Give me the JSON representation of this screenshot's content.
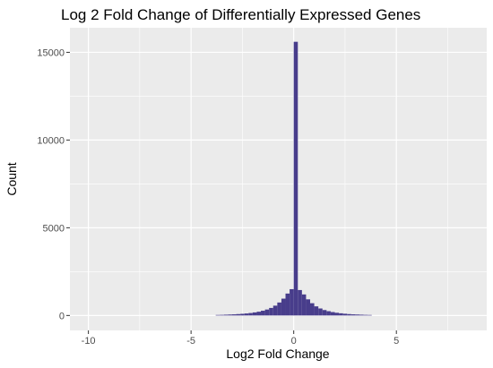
{
  "chart_data": {
    "type": "bar",
    "title": "Log 2 Fold Change of Differentially Expressed Genes",
    "xlabel": "Log2 Fold Change",
    "ylabel": "Count",
    "xlim": [
      -10.9,
      9.4
    ],
    "ylim": [
      -850,
      16400
    ],
    "x_ticks": [
      -10,
      -5,
      0,
      5
    ],
    "y_ticks": [
      0,
      5000,
      10000,
      15000
    ],
    "bin_width": 0.2,
    "bar_color": "#483d8b",
    "panel_background": "#ebebeb",
    "grid": true,
    "bins": [
      {
        "x": -3.7,
        "count": 30
      },
      {
        "x": -3.5,
        "count": 35
      },
      {
        "x": -3.3,
        "count": 45
      },
      {
        "x": -3.1,
        "count": 55
      },
      {
        "x": -2.9,
        "count": 65
      },
      {
        "x": -2.7,
        "count": 80
      },
      {
        "x": -2.5,
        "count": 95
      },
      {
        "x": -2.3,
        "count": 115
      },
      {
        "x": -2.1,
        "count": 140
      },
      {
        "x": -1.9,
        "count": 175
      },
      {
        "x": -1.7,
        "count": 215
      },
      {
        "x": -1.5,
        "count": 270
      },
      {
        "x": -1.3,
        "count": 340
      },
      {
        "x": -1.1,
        "count": 430
      },
      {
        "x": -0.9,
        "count": 560
      },
      {
        "x": -0.7,
        "count": 740
      },
      {
        "x": -0.5,
        "count": 960
      },
      {
        "x": -0.3,
        "count": 1250
      },
      {
        "x": -0.1,
        "count": 1500
      },
      {
        "x": 0.1,
        "count": 15600
      },
      {
        "x": 0.3,
        "count": 1450
      },
      {
        "x": 0.5,
        "count": 1200
      },
      {
        "x": 0.7,
        "count": 920
      },
      {
        "x": 0.9,
        "count": 700
      },
      {
        "x": 1.1,
        "count": 520
      },
      {
        "x": 1.3,
        "count": 400
      },
      {
        "x": 1.5,
        "count": 310
      },
      {
        "x": 1.7,
        "count": 245
      },
      {
        "x": 1.9,
        "count": 195
      },
      {
        "x": 2.1,
        "count": 155
      },
      {
        "x": 2.3,
        "count": 125
      },
      {
        "x": 2.5,
        "count": 100
      },
      {
        "x": 2.7,
        "count": 80
      },
      {
        "x": 2.9,
        "count": 65
      },
      {
        "x": 3.1,
        "count": 55
      },
      {
        "x": 3.3,
        "count": 45
      },
      {
        "x": 3.5,
        "count": 35
      },
      {
        "x": 3.7,
        "count": 30
      }
    ]
  }
}
